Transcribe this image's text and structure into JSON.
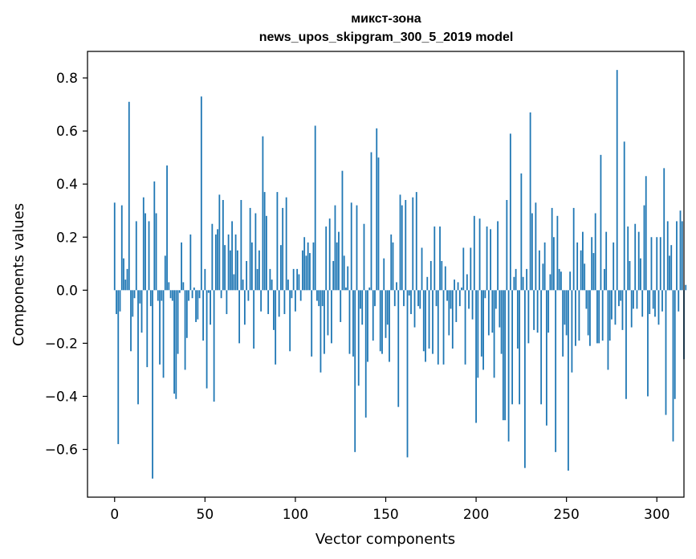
{
  "chart_data": {
    "type": "bar",
    "title": "микст-зона",
    "subtitle": "news_upos_skipgram_300_5_2019 model",
    "xlabel": "Vector components",
    "ylabel": "Components values",
    "xlim": [
      -15,
      315
    ],
    "ylim": [
      -0.78,
      0.9
    ],
    "xticks": [
      0,
      50,
      100,
      150,
      200,
      250,
      300
    ],
    "xtick_labels": [
      "0",
      "50",
      "100",
      "150",
      "200",
      "250",
      "300"
    ],
    "yticks": [
      -0.6,
      -0.4,
      -0.2,
      0.0,
      0.2,
      0.4,
      0.6,
      0.8
    ],
    "ytick_labels": [
      "−0.6",
      "−0.4",
      "−0.2",
      "0.0",
      "0.2",
      "0.4",
      "0.6",
      "0.8"
    ],
    "bar_color": "#1f77b4",
    "values": [
      0.33,
      -0.09,
      -0.58,
      -0.08,
      0.32,
      0.12,
      0.04,
      0.08,
      0.71,
      -0.23,
      -0.1,
      -0.03,
      0.26,
      -0.43,
      -0.05,
      -0.16,
      0.35,
      0.29,
      -0.29,
      0.26,
      -0.06,
      -0.71,
      0.41,
      0.29,
      -0.04,
      -0.28,
      -0.04,
      -0.33,
      0.13,
      0.47,
      0.03,
      -0.03,
      -0.04,
      -0.39,
      -0.41,
      -0.24,
      -0.01,
      0.18,
      0.03,
      -0.3,
      -0.18,
      -0.04,
      0.21,
      -0.03,
      0.01,
      -0.12,
      -0.11,
      -0.03,
      0.73,
      -0.19,
      0.08,
      -0.37,
      -0.01,
      -0.13,
      0.25,
      -0.42,
      0.21,
      0.23,
      0.36,
      -0.03,
      0.34,
      0.17,
      -0.09,
      0.21,
      0.15,
      0.26,
      0.06,
      0.21,
      0.15,
      -0.2,
      0.34,
      0.04,
      -0.13,
      0.11,
      -0.04,
      0.31,
      0.18,
      -0.22,
      0.29,
      0.08,
      0.15,
      -0.08,
      0.58,
      0.37,
      0.28,
      -0.09,
      0.08,
      0.04,
      -0.15,
      -0.28,
      0.37,
      -0.1,
      0.17,
      0.31,
      -0.09,
      0.35,
      0.04,
      -0.23,
      -0.03,
      0.08,
      -0.08,
      0.08,
      0.06,
      -0.04,
      0.15,
      0.2,
      0.13,
      0.18,
      0.14,
      -0.25,
      0.18,
      0.62,
      -0.04,
      -0.06,
      -0.31,
      -0.06,
      -0.24,
      0.24,
      -0.17,
      0.27,
      -0.2,
      0.11,
      0.32,
      0.18,
      0.22,
      -0.12,
      0.45,
      0.13,
      0.01,
      0.09,
      -0.24,
      0.33,
      -0.25,
      -0.61,
      0.32,
      -0.36,
      -0.07,
      -0.13,
      0.25,
      -0.48,
      -0.27,
      0.01,
      0.52,
      -0.19,
      -0.06,
      0.61,
      0.5,
      -0.23,
      -0.24,
      0.12,
      -0.18,
      -0.13,
      -0.27,
      0.21,
      0.18,
      -0.06,
      0.03,
      -0.44,
      0.36,
      0.32,
      -0.06,
      0.34,
      -0.63,
      -0.02,
      -0.09,
      0.35,
      -0.14,
      0.37,
      -0.06,
      -0.07,
      0.16,
      -0.23,
      -0.27,
      0.05,
      -0.22,
      0.11,
      -0.24,
      0.24,
      -0.06,
      -0.28,
      0.24,
      0.11,
      -0.28,
      0.09,
      -0.04,
      -0.17,
      -0.07,
      -0.22,
      0.04,
      -0.12,
      0.03,
      -0.06,
      0.01,
      0.16,
      -0.28,
      0.06,
      -0.07,
      0.16,
      -0.11,
      0.28,
      -0.5,
      -0.33,
      0.27,
      -0.25,
      -0.3,
      -0.03,
      0.24,
      -0.17,
      0.23,
      -0.16,
      -0.33,
      -0.07,
      0.26,
      -0.14,
      -0.24,
      -0.49,
      -0.49,
      0.34,
      -0.57,
      0.59,
      -0.43,
      0.05,
      0.08,
      -0.22,
      -0.43,
      0.44,
      0.05,
      -0.67,
      0.08,
      -0.2,
      0.67,
      0.29,
      -0.15,
      0.33,
      -0.16,
      0.15,
      -0.43,
      0.1,
      0.18,
      -0.51,
      -0.16,
      0.06,
      0.31,
      0.2,
      -0.61,
      0.28,
      0.08,
      0.07,
      -0.25,
      -0.13,
      -0.17,
      -0.68,
      0.07,
      -0.31,
      0.31,
      -0.21,
      0.18,
      -0.19,
      0.15,
      0.22,
      0.1,
      -0.07,
      -0.17,
      -0.21,
      0.2,
      0.14,
      0.29,
      -0.2,
      -0.2,
      0.51,
      -0.19,
      0.08,
      0.22,
      -0.3,
      -0.19,
      -0.11,
      0.18,
      -0.13,
      0.83,
      -0.06,
      -0.04,
      -0.15,
      0.56,
      -0.41,
      0.24,
      0.11,
      -0.14,
      -0.07,
      0.25,
      -0.07,
      0.22,
      0.12,
      -0.1,
      0.32,
      0.43,
      -0.4,
      -0.09,
      0.2,
      -0.07,
      -0.1,
      0.2,
      -0.13,
      0.2,
      -0.08,
      0.46,
      -0.47,
      0.26,
      0.13,
      0.17,
      -0.57,
      -0.41,
      0.26,
      -0.08,
      0.3,
      0.26,
      -0.26,
      0.02
    ]
  }
}
